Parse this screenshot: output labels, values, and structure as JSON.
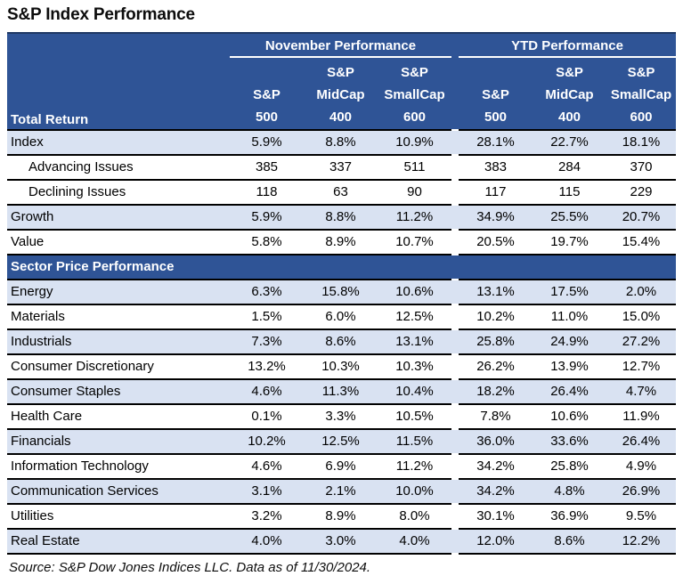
{
  "title": "S&P Index Performance",
  "source": "Source: S&P Dow Jones Indices LLC. Data as of 11/30/2024.",
  "colors": {
    "header_blue": "#2F5496",
    "header_top_line": "#1F3864",
    "row_shaded": "#D9E2F2",
    "row_border": "#000000",
    "header_text": "#FFFFFF",
    "body_text": "#000000"
  },
  "header": {
    "row_axis_label": "Total Return",
    "groups": [
      {
        "label": "November Performance",
        "columns": [
          [
            "S&P",
            "500"
          ],
          [
            "S&P",
            "MidCap",
            "400"
          ],
          [
            "S&P",
            "SmallCap",
            "600"
          ]
        ]
      },
      {
        "label": "YTD Performance",
        "columns": [
          [
            "S&P",
            "500"
          ],
          [
            "S&P",
            "MidCap",
            "400"
          ],
          [
            "S&P",
            "SmallCap",
            "600"
          ]
        ]
      }
    ]
  },
  "chart_data": {
    "type": "table",
    "title": "S&P Index Performance",
    "column_groups": [
      {
        "name": "November Performance",
        "columns": [
          "S&P 500",
          "S&P MidCap 400",
          "S&P SmallCap 600"
        ]
      },
      {
        "name": "YTD Performance",
        "columns": [
          "S&P 500",
          "S&P MidCap 400",
          "S&P SmallCap 600"
        ]
      }
    ],
    "sections": [
      {
        "name": "Total Return",
        "header_row": false,
        "rows": [
          {
            "label": "Index",
            "indent": false,
            "shaded": true,
            "nov": [
              "5.9%",
              "8.8%",
              "10.9%"
            ],
            "ytd": [
              "28.1%",
              "22.7%",
              "18.1%"
            ]
          },
          {
            "label": "Advancing Issues",
            "indent": true,
            "shaded": false,
            "nov": [
              "385",
              "337",
              "511"
            ],
            "ytd": [
              "383",
              "284",
              "370"
            ]
          },
          {
            "label": "Declining Issues",
            "indent": true,
            "shaded": false,
            "nov": [
              "118",
              "63",
              "90"
            ],
            "ytd": [
              "117",
              "115",
              "229"
            ]
          },
          {
            "label": "Growth",
            "indent": false,
            "shaded": true,
            "nov": [
              "5.9%",
              "8.8%",
              "11.2%"
            ],
            "ytd": [
              "34.9%",
              "25.5%",
              "20.7%"
            ]
          },
          {
            "label": "Value",
            "indent": false,
            "shaded": false,
            "nov": [
              "5.8%",
              "8.9%",
              "10.7%"
            ],
            "ytd": [
              "20.5%",
              "19.7%",
              "15.4%"
            ]
          }
        ]
      },
      {
        "name": "Sector Price Performance",
        "header_row": true,
        "rows": [
          {
            "label": "Energy",
            "indent": false,
            "shaded": true,
            "nov": [
              "6.3%",
              "15.8%",
              "10.6%"
            ],
            "ytd": [
              "13.1%",
              "17.5%",
              "2.0%"
            ]
          },
          {
            "label": "Materials",
            "indent": false,
            "shaded": false,
            "nov": [
              "1.5%",
              "6.0%",
              "12.5%"
            ],
            "ytd": [
              "10.2%",
              "11.0%",
              "15.0%"
            ]
          },
          {
            "label": "Industrials",
            "indent": false,
            "shaded": true,
            "nov": [
              "7.3%",
              "8.6%",
              "13.1%"
            ],
            "ytd": [
              "25.8%",
              "24.9%",
              "27.2%"
            ]
          },
          {
            "label": "Consumer Discretionary",
            "indent": false,
            "shaded": false,
            "nov": [
              "13.2%",
              "10.3%",
              "10.3%"
            ],
            "ytd": [
              "26.2%",
              "13.9%",
              "12.7%"
            ]
          },
          {
            "label": "Consumer Staples",
            "indent": false,
            "shaded": true,
            "nov": [
              "4.6%",
              "11.3%",
              "10.4%"
            ],
            "ytd": [
              "18.2%",
              "26.4%",
              "4.7%"
            ]
          },
          {
            "label": "Health Care",
            "indent": false,
            "shaded": false,
            "nov": [
              "0.1%",
              "3.3%",
              "10.5%"
            ],
            "ytd": [
              "7.8%",
              "10.6%",
              "11.9%"
            ]
          },
          {
            "label": "Financials",
            "indent": false,
            "shaded": true,
            "nov": [
              "10.2%",
              "12.5%",
              "11.5%"
            ],
            "ytd": [
              "36.0%",
              "33.6%",
              "26.4%"
            ]
          },
          {
            "label": "Information Technology",
            "indent": false,
            "shaded": false,
            "nov": [
              "4.6%",
              "6.9%",
              "11.2%"
            ],
            "ytd": [
              "34.2%",
              "25.8%",
              "4.9%"
            ]
          },
          {
            "label": "Communication Services",
            "indent": false,
            "shaded": true,
            "nov": [
              "3.1%",
              "2.1%",
              "10.0%"
            ],
            "ytd": [
              "34.2%",
              "4.8%",
              "26.9%"
            ]
          },
          {
            "label": "Utilities",
            "indent": false,
            "shaded": false,
            "nov": [
              "3.2%",
              "8.9%",
              "8.0%"
            ],
            "ytd": [
              "30.1%",
              "36.9%",
              "9.5%"
            ]
          },
          {
            "label": "Real Estate",
            "indent": false,
            "shaded": true,
            "nov": [
              "4.0%",
              "3.0%",
              "4.0%"
            ],
            "ytd": [
              "12.0%",
              "8.6%",
              "12.2%"
            ]
          }
        ]
      }
    ],
    "source": "Source: S&P Dow Jones Indices LLC. Data as of 11/30/2024."
  }
}
